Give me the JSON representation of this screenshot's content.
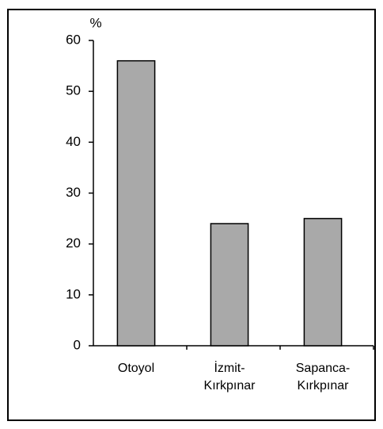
{
  "chart_data": {
    "type": "bar",
    "y_label": "%",
    "categories": [
      "Otoyol",
      "İzmit-Kırkpınar",
      "Sapanca-Kırkpınar"
    ],
    "values": [
      56,
      24,
      25
    ],
    "color": "#a9a9a9",
    "ylim": [
      0,
      60
    ],
    "yticks": [
      0,
      10,
      20,
      30,
      40,
      50,
      60
    ],
    "grid": false
  }
}
